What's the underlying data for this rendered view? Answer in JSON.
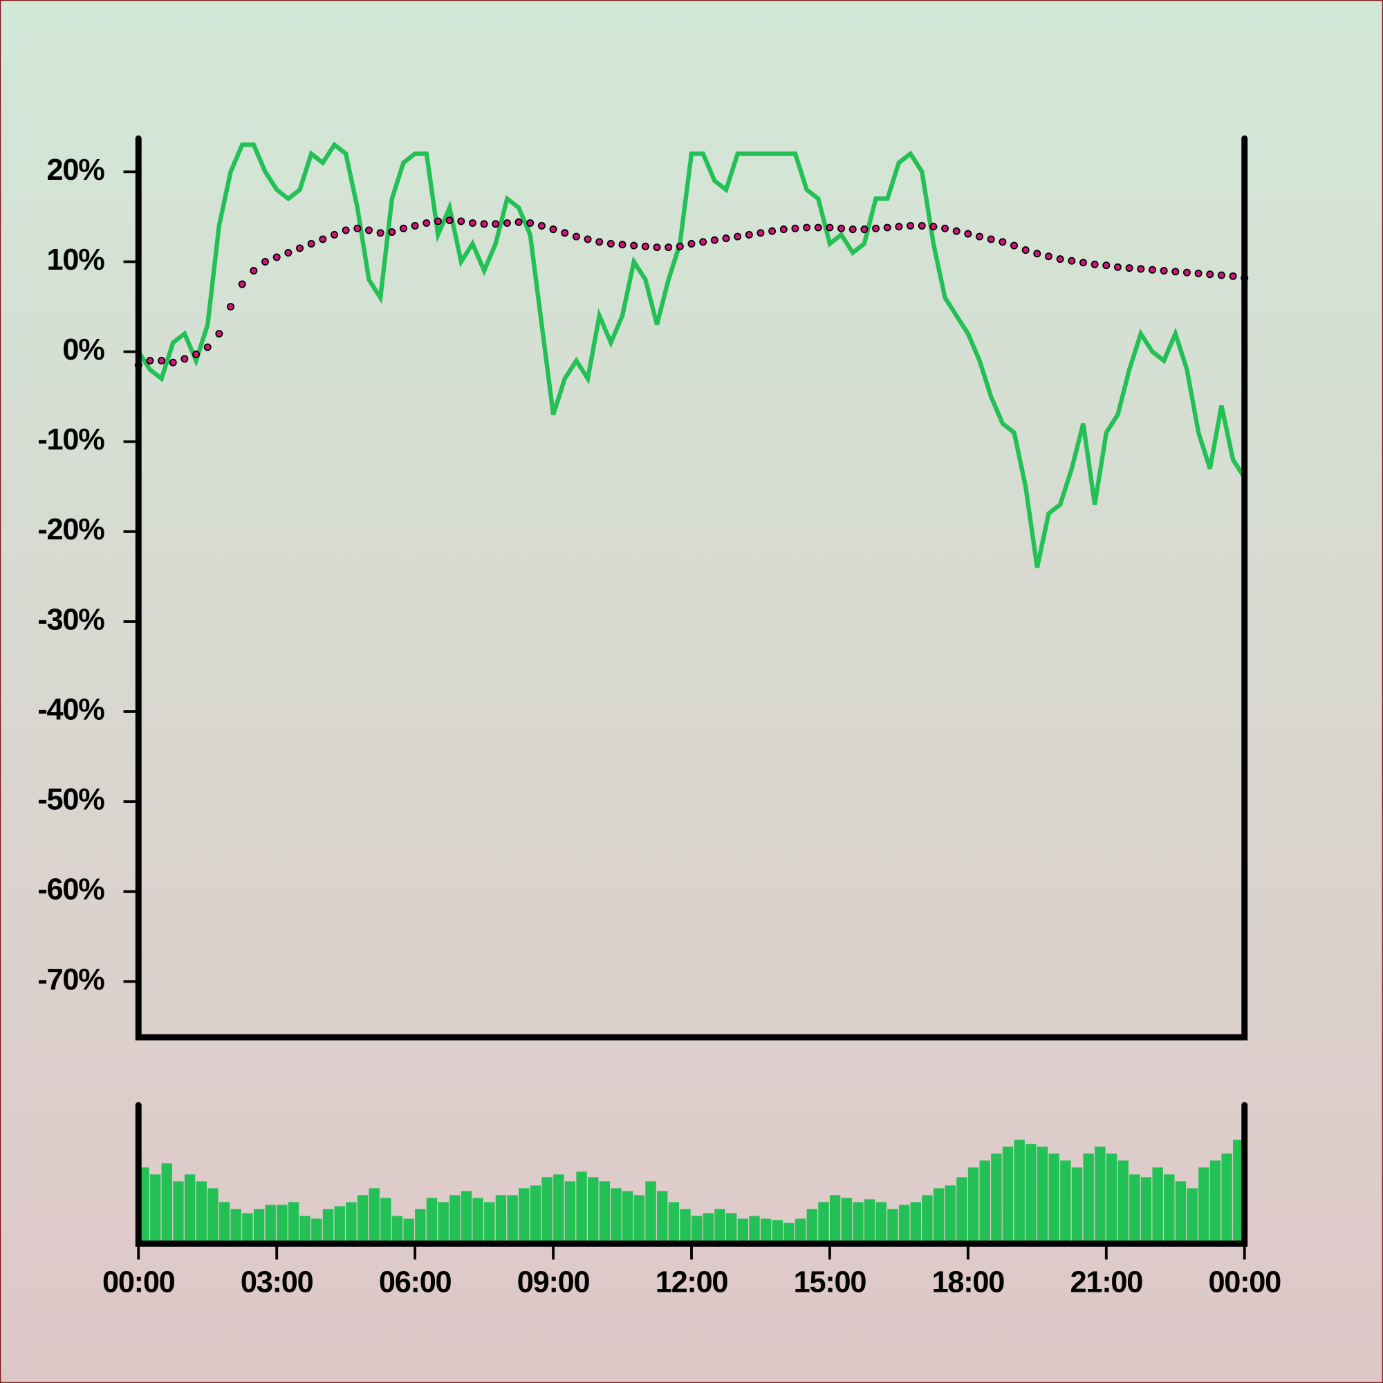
{
  "chart_data": [
    {
      "type": "line",
      "xlim": [
        0,
        24
      ],
      "ylim": [
        -76.2,
        23.7
      ],
      "yticks": [
        {
          "value": 20,
          "label": "20%"
        },
        {
          "value": 10,
          "label": "10%"
        },
        {
          "value": 0,
          "label": "0%"
        },
        {
          "value": -10,
          "label": "-10%"
        },
        {
          "value": -20,
          "label": "-20%"
        },
        {
          "value": -30,
          "label": "-30%"
        },
        {
          "value": -40,
          "label": "-40%"
        },
        {
          "value": -50,
          "label": "-50%"
        },
        {
          "value": -60,
          "label": "-60%"
        },
        {
          "value": -70,
          "label": "-70%"
        }
      ],
      "x": [
        0,
        0.25,
        0.5,
        0.75,
        1,
        1.25,
        1.5,
        1.75,
        2,
        2.25,
        2.5,
        2.75,
        3,
        3.25,
        3.5,
        3.75,
        4,
        4.25,
        4.5,
        4.75,
        5,
        5.25,
        5.5,
        5.75,
        6,
        6.25,
        6.5,
        6.75,
        7,
        7.25,
        7.5,
        7.75,
        8,
        8.25,
        8.5,
        8.75,
        9,
        9.25,
        9.5,
        9.75,
        10,
        10.25,
        10.5,
        10.75,
        11,
        11.25,
        11.5,
        11.75,
        12,
        12.25,
        12.5,
        12.75,
        13,
        13.25,
        13.5,
        13.75,
        14,
        14.25,
        14.5,
        14.75,
        15,
        15.25,
        15.5,
        15.75,
        16,
        16.25,
        16.5,
        16.75,
        17,
        17.25,
        17.5,
        17.75,
        18,
        18.25,
        18.5,
        18.75,
        19,
        19.25,
        19.5,
        19.75,
        20,
        20.25,
        20.5,
        20.75,
        21,
        21.25,
        21.5,
        21.75,
        22,
        22.25,
        22.5,
        22.75,
        23,
        23.25,
        23.5,
        23.75,
        24
      ],
      "series": [
        {
          "color": "#22c055",
          "line": "solid",
          "values": [
            0,
            -2,
            -3,
            1,
            2,
            -1,
            3,
            14,
            20,
            23,
            23,
            20,
            18,
            17,
            18,
            22,
            21,
            23,
            22,
            16,
            8,
            6,
            17,
            21,
            22,
            22,
            13,
            16,
            10,
            12,
            9,
            12,
            17,
            16,
            13,
            3,
            -7,
            -3,
            -1,
            -3,
            4,
            1,
            4,
            10,
            8,
            3,
            8,
            12,
            22,
            22,
            19,
            18,
            22,
            22,
            22,
            22,
            22,
            22,
            18,
            17,
            12,
            13,
            11,
            12,
            17,
            17,
            21,
            22,
            20,
            12,
            6,
            4,
            2,
            -1,
            -5,
            -8,
            -9,
            -15,
            -24,
            -18,
            -17,
            -13,
            -8,
            -17,
            -9,
            -7,
            -2,
            2,
            0,
            -1,
            2,
            -2,
            -9,
            -13,
            -6,
            -12,
            -14
          ]
        },
        {
          "color": "#d0167a",
          "line": "dotted",
          "values": [
            -1.5,
            -1,
            -1,
            -1.2,
            -0.8,
            -0.3,
            0.5,
            2,
            5,
            7.5,
            9,
            10,
            10.5,
            11,
            11.5,
            12,
            12.5,
            13,
            13.5,
            13.7,
            13.5,
            13.2,
            13.3,
            13.7,
            14,
            14.3,
            14.5,
            14.6,
            14.5,
            14.3,
            14.2,
            14.2,
            14.3,
            14.4,
            14.3,
            14,
            13.6,
            13.2,
            12.8,
            12.5,
            12.2,
            12,
            11.9,
            11.8,
            11.7,
            11.6,
            11.6,
            11.7,
            12,
            12.2,
            12.4,
            12.6,
            12.8,
            13,
            13.2,
            13.4,
            13.6,
            13.7,
            13.8,
            13.8,
            13.8,
            13.7,
            13.6,
            13.6,
            13.7,
            13.8,
            13.9,
            14,
            14,
            13.9,
            13.7,
            13.4,
            13.1,
            12.8,
            12.5,
            12.2,
            11.8,
            11.3,
            10.9,
            10.6,
            10.3,
            10.1,
            9.9,
            9.7,
            9.6,
            9.4,
            9.3,
            9.2,
            9.1,
            9,
            8.9,
            8.8,
            8.7,
            8.6,
            8.5,
            8.4,
            8.2
          ]
        }
      ]
    },
    {
      "type": "bar",
      "color": "#22c055",
      "xlim": [
        0,
        24
      ],
      "ylim": [
        0,
        100
      ],
      "xticks": [
        {
          "value": 0,
          "label": "00:00"
        },
        {
          "value": 3,
          "label": "03:00"
        },
        {
          "value": 6,
          "label": "06:00"
        },
        {
          "value": 9,
          "label": "09:00"
        },
        {
          "value": 12,
          "label": "12:00"
        },
        {
          "value": 15,
          "label": "15:00"
        },
        {
          "value": 18,
          "label": "18:00"
        },
        {
          "value": 21,
          "label": "21:00"
        },
        {
          "value": 24,
          "label": "00:00"
        }
      ],
      "x": [
        0.125,
        0.375,
        0.625,
        0.875,
        1.125,
        1.375,
        1.625,
        1.875,
        2.125,
        2.375,
        2.625,
        2.875,
        3.125,
        3.375,
        3.625,
        3.875,
        4.125,
        4.375,
        4.625,
        4.875,
        5.125,
        5.375,
        5.625,
        5.875,
        6.125,
        6.375,
        6.625,
        6.875,
        7.125,
        7.375,
        7.625,
        7.875,
        8.125,
        8.375,
        8.625,
        8.875,
        9.125,
        9.375,
        9.625,
        9.875,
        10.125,
        10.375,
        10.625,
        10.875,
        11.125,
        11.375,
        11.625,
        11.875,
        12.125,
        12.375,
        12.625,
        12.875,
        13.125,
        13.375,
        13.625,
        13.875,
        14.125,
        14.375,
        14.625,
        14.875,
        15.125,
        15.375,
        15.625,
        15.875,
        16.125,
        16.375,
        16.625,
        16.875,
        17.125,
        17.375,
        17.625,
        17.875,
        18.125,
        18.375,
        18.625,
        18.875,
        19.125,
        19.375,
        19.625,
        19.875,
        20.125,
        20.375,
        20.625,
        20.875,
        21.125,
        21.375,
        21.625,
        21.875,
        22.125,
        22.375,
        22.625,
        22.875,
        23.125,
        23.375,
        23.625,
        23.875
      ],
      "values": [
        55,
        50,
        58,
        45,
        50,
        45,
        40,
        30,
        25,
        22,
        25,
        28,
        28,
        30,
        20,
        18,
        25,
        27,
        30,
        35,
        40,
        33,
        20,
        18,
        25,
        33,
        30,
        35,
        38,
        33,
        30,
        35,
        35,
        40,
        42,
        48,
        50,
        45,
        52,
        48,
        45,
        40,
        38,
        35,
        45,
        38,
        30,
        25,
        20,
        22,
        25,
        22,
        18,
        20,
        18,
        17,
        15,
        18,
        25,
        30,
        35,
        33,
        30,
        32,
        30,
        25,
        28,
        30,
        35,
        40,
        42,
        48,
        55,
        60,
        65,
        70,
        75,
        72,
        70,
        65,
        60,
        55,
        65,
        70,
        65,
        60,
        50,
        48,
        55,
        50,
        45,
        40,
        55,
        60,
        65,
        75
      ]
    }
  ]
}
